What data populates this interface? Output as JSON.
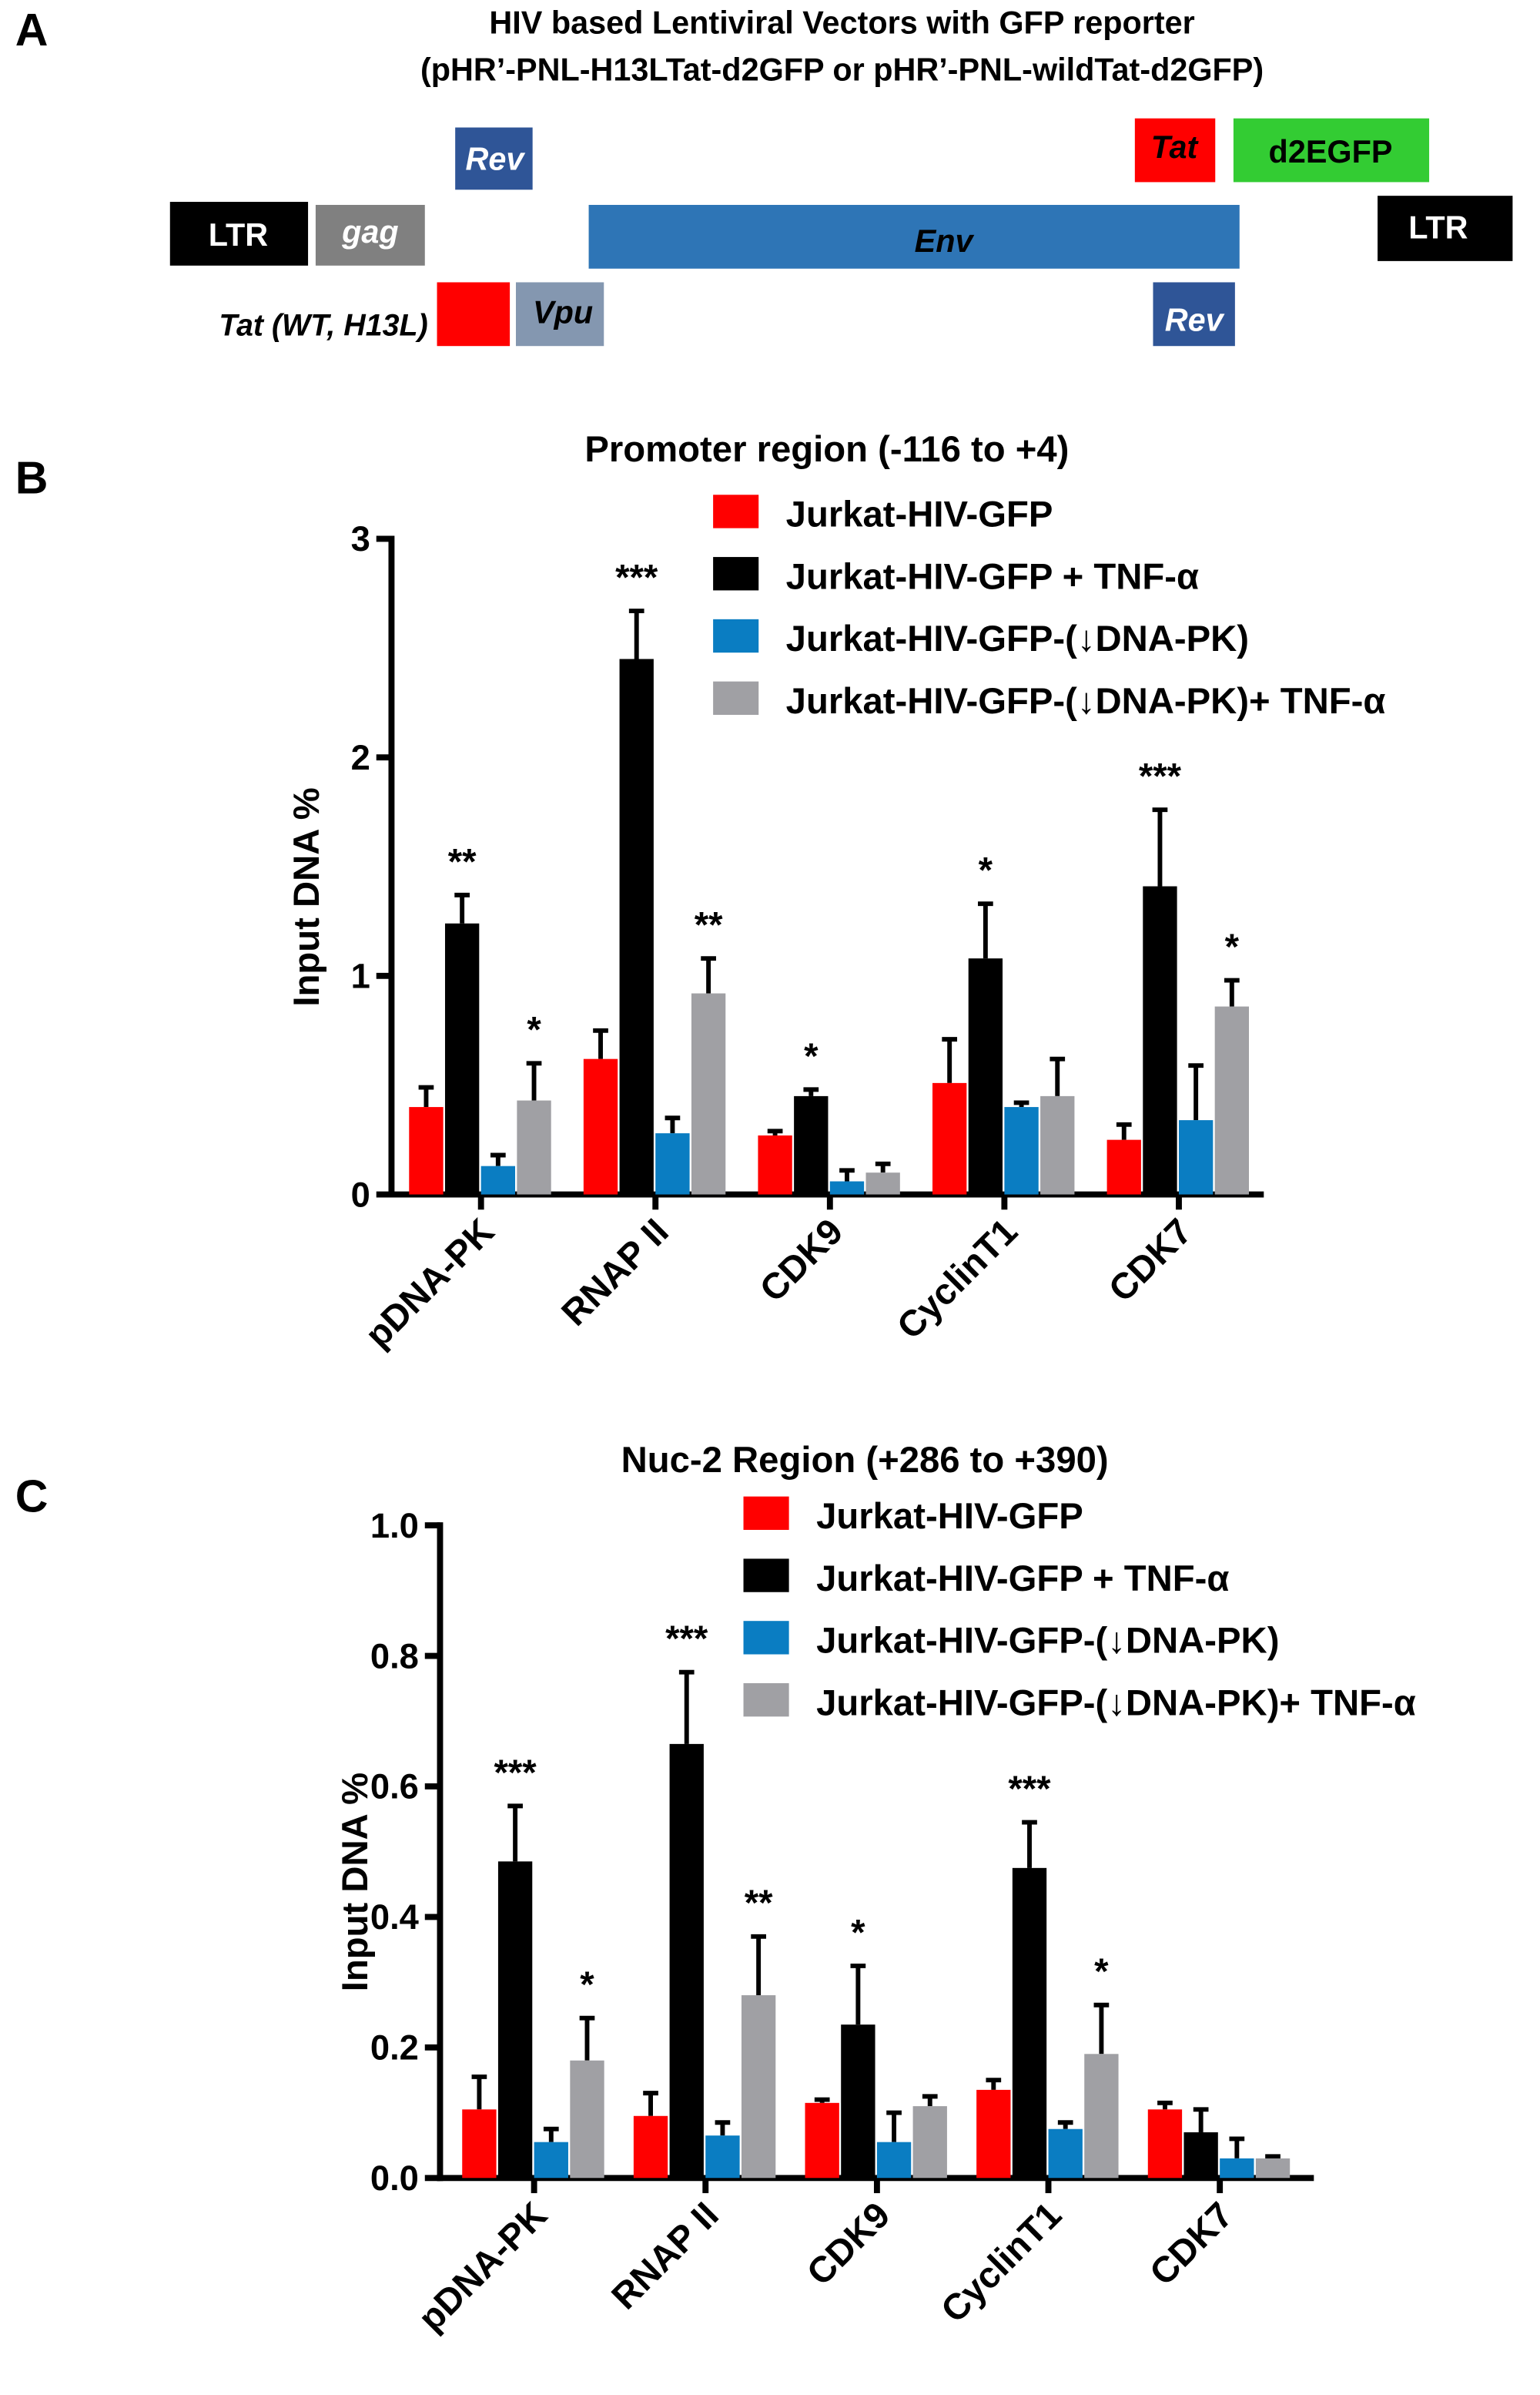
{
  "panel_a": {
    "letter": "A",
    "title_line1": "HIV based Lentiviral Vectors with GFP reporter",
    "title_line2": "(pHR’-PNL-H13LTat-d2GFP or pHR’-PNL-wildTat-d2GFP)",
    "genes": {
      "ltr_left": "LTR",
      "gag": "gag",
      "rev_top": "Rev",
      "env": "Env",
      "tat_top": "Tat",
      "d2egfp": "d2EGFP",
      "ltr_right": "LTR",
      "tat_label": "Tat (WT, H13L)",
      "vpu": "Vpu",
      "rev_bottom": "Rev"
    },
    "colors": {
      "ltr": "#000000",
      "gag": "#808080",
      "rev": "#2f5597",
      "env": "#2e75b6",
      "tat": "#ff0000",
      "d2egfp": "#33cc33",
      "vpu": "#8497b0"
    }
  },
  "legend": {
    "s0": "Jurkat-HIV-GFP",
    "s1": "Jurkat-HIV-GFP + TNF-α",
    "s2": "Jurkat-HIV-GFP-(↓DNA-PK)",
    "s3": "Jurkat-HIV-GFP-(↓DNA-PK)+ TNF-α"
  },
  "chart_data": [
    {
      "panel_letter": "B",
      "type": "bar",
      "title": "Promoter region (-116 to +4)",
      "ylabel": "Input DNA %",
      "ylim": [
        0,
        3
      ],
      "yticks": [
        "0",
        "1",
        "2",
        "3"
      ],
      "categories": [
        "pDNA-PK",
        "RNAP II",
        "CDK9",
        "CyclinT1",
        "CDK7"
      ],
      "legend_position": "top-right",
      "series": [
        {
          "name": "Jurkat-HIV-GFP",
          "color": "#ff0000",
          "values": [
            0.4,
            0.62,
            0.27,
            0.51,
            0.25
          ],
          "errors": [
            0.09,
            0.13,
            0.02,
            0.2,
            0.07
          ],
          "significance": [
            "",
            "",
            "",
            "",
            ""
          ]
        },
        {
          "name": "Jurkat-HIV-GFP + TNF-α",
          "color": "#000000",
          "values": [
            1.24,
            2.45,
            0.45,
            1.08,
            1.41
          ],
          "errors": [
            0.13,
            0.22,
            0.03,
            0.25,
            0.35
          ],
          "significance": [
            "**",
            "***",
            "*",
            "*",
            "***"
          ]
        },
        {
          "name": "Jurkat-HIV-GFP-(↓DNA-PK)",
          "color": "#0a7dc2",
          "values": [
            0.13,
            0.28,
            0.06,
            0.4,
            0.34
          ],
          "errors": [
            0.05,
            0.07,
            0.05,
            0.02,
            0.25
          ],
          "significance": [
            "",
            "",
            "",
            "",
            ""
          ]
        },
        {
          "name": "Jurkat-HIV-GFP-(↓DNA-PK)+ TNF-α",
          "color": "#a0a0a4",
          "values": [
            0.43,
            0.92,
            0.1,
            0.45,
            0.86
          ],
          "errors": [
            0.17,
            0.16,
            0.04,
            0.17,
            0.12
          ],
          "significance": [
            "*",
            "**",
            "",
            "",
            "*"
          ]
        }
      ]
    },
    {
      "panel_letter": "C",
      "type": "bar",
      "title": "Nuc-2 Region (+286 to +390)",
      "ylabel": "Input DNA %",
      "ylim": [
        0,
        1.0
      ],
      "yticks": [
        "0.0",
        "0.2",
        "0.4",
        "0.6",
        "0.8",
        "1.0"
      ],
      "categories": [
        "pDNA-PK",
        "RNAP II",
        "CDK9",
        "CyclinT1",
        "CDK7"
      ],
      "legend_position": "top-right",
      "series": [
        {
          "name": "Jurkat-HIV-GFP",
          "color": "#ff0000",
          "values": [
            0.105,
            0.095,
            0.115,
            0.135,
            0.105
          ],
          "errors": [
            0.05,
            0.035,
            0.005,
            0.015,
            0.01
          ],
          "significance": [
            "",
            "",
            "",
            "",
            ""
          ]
        },
        {
          "name": "Jurkat-HIV-GFP + TNF-α",
          "color": "#000000",
          "values": [
            0.485,
            0.665,
            0.235,
            0.475,
            0.07
          ],
          "errors": [
            0.085,
            0.11,
            0.09,
            0.07,
            0.035
          ],
          "significance": [
            "***",
            "***",
            "*",
            "***",
            ""
          ]
        },
        {
          "name": "Jurkat-HIV-GFP-(↓DNA-PK)",
          "color": "#0a7dc2",
          "values": [
            0.055,
            0.065,
            0.055,
            0.075,
            0.03
          ],
          "errors": [
            0.02,
            0.02,
            0.045,
            0.01,
            0.03
          ],
          "significance": [
            "",
            "",
            "",
            "",
            ""
          ]
        },
        {
          "name": "Jurkat-HIV-GFP-(↓DNA-PK)+ TNF-α",
          "color": "#a0a0a4",
          "values": [
            0.18,
            0.28,
            0.11,
            0.19,
            0.03
          ],
          "errors": [
            0.065,
            0.09,
            0.015,
            0.075,
            0.003
          ],
          "significance": [
            "*",
            "**",
            "",
            "*",
            ""
          ]
        }
      ]
    }
  ]
}
